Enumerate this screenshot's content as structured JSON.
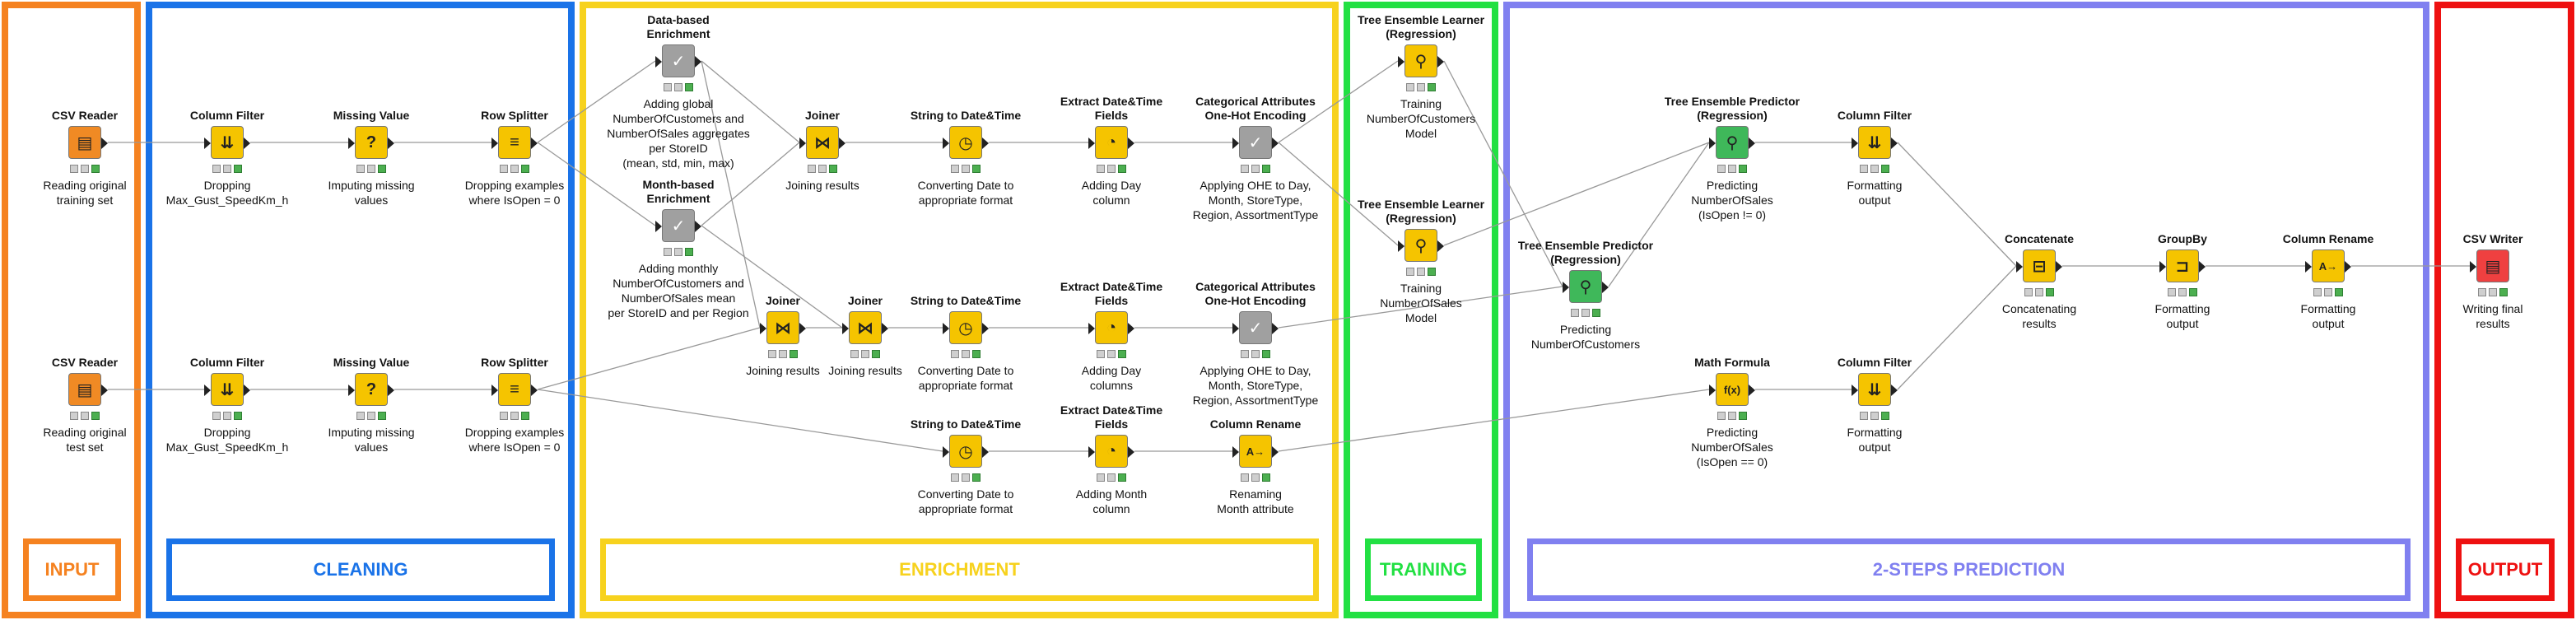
{
  "colors": {
    "input": "#f58220",
    "cleaning": "#1a73e8",
    "enrichment": "#f7d21e",
    "training": "#22e043",
    "prediction": "#8080f0",
    "output": "#ee1111",
    "node_yellow": "#f5c400",
    "node_orange": "#f08a24",
    "node_gray": "#a0a0a0",
    "node_green": "#3fb85a",
    "node_red": "#ef4040"
  },
  "sections": {
    "input": "INPUT",
    "cleaning": "CLEANING",
    "enrichment": "ENRICHMENT",
    "training": "TRAINING",
    "prediction": "2-STEPS PREDICTION",
    "output": "OUTPUT"
  },
  "nodes": [
    {
      "id": "csv_reader_train",
      "title": "CSV Reader",
      "desc": "Reading original\ntraining set",
      "icon": "file-table-icon",
      "glyph": "▤",
      "color": "orange"
    },
    {
      "id": "col_filter_1",
      "title": "Column Filter",
      "desc": "Dropping\nMax_Gust_SpeedKm_h",
      "icon": "filter-icon",
      "glyph": "⇊",
      "color": "yellow"
    },
    {
      "id": "missing_1",
      "title": "Missing Value",
      "desc": "Imputing missing\nvalues",
      "icon": "question-icon",
      "glyph": "?",
      "color": "yellow"
    },
    {
      "id": "row_split_1",
      "title": "Row Splitter",
      "desc": "Dropping examples\nwhere IsOpen = 0",
      "icon": "split-icon",
      "glyph": "≡",
      "color": "yellow"
    },
    {
      "id": "data_enrich",
      "title": "Data-based\nEnrichment",
      "desc": "Adding global\nNumberOfCustomers and\nNumberOfSales aggregates\nper StoreID\n(mean, std, min, max)",
      "icon": "metanode-icon",
      "glyph": "✓",
      "color": "gray"
    },
    {
      "id": "month_enrich",
      "title": "Month-based\nEnrichment",
      "desc": "Adding monthly\nNumberOfCustomers and\nNumberOfSales mean\nper StoreID and per Region",
      "icon": "metanode-icon",
      "glyph": "✓",
      "color": "gray"
    },
    {
      "id": "joiner_1",
      "title": "Joiner",
      "desc": "Joining results",
      "icon": "join-icon",
      "glyph": "⋈",
      "color": "yellow"
    },
    {
      "id": "str2date_1",
      "title": "String to Date&Time",
      "desc": "Converting Date to\nappropriate format",
      "icon": "clock-icon",
      "glyph": "◷",
      "color": "yellow"
    },
    {
      "id": "extract_dt_1",
      "title": "Extract Date&Time\nFields",
      "desc": "Adding Day\ncolumn",
      "icon": "clock-icon",
      "glyph": "◔",
      "color": "yellow"
    },
    {
      "id": "ohe_1",
      "title": "Categorical Attributes\nOne-Hot Encoding",
      "desc": "Applying OHE to Day,\nMonth, StoreType,\nRegion, AssortmentType",
      "icon": "metanode-icon",
      "glyph": "✓",
      "color": "gray"
    },
    {
      "id": "csv_reader_test",
      "title": "CSV Reader",
      "desc": "Reading original\ntest set",
      "icon": "file-table-icon",
      "glyph": "▤",
      "color": "orange"
    },
    {
      "id": "col_filter_2",
      "title": "Column Filter",
      "desc": "Dropping\nMax_Gust_SpeedKm_h",
      "icon": "filter-icon",
      "glyph": "⇊",
      "color": "yellow"
    },
    {
      "id": "missing_2",
      "title": "Missing Value",
      "desc": "Imputing missing\nvalues",
      "icon": "question-icon",
      "glyph": "?",
      "color": "yellow"
    },
    {
      "id": "row_split_2",
      "title": "Row Splitter",
      "desc": "Dropping examples\nwhere IsOpen = 0",
      "icon": "split-icon",
      "glyph": "≡",
      "color": "yellow"
    },
    {
      "id": "joiner_2",
      "title": "Joiner",
      "desc": "Joining results",
      "icon": "join-icon",
      "glyph": "⋈",
      "color": "yellow"
    },
    {
      "id": "joiner_3",
      "title": "Joiner",
      "desc": "Joining results",
      "icon": "join-icon",
      "glyph": "⋈",
      "color": "yellow"
    },
    {
      "id": "str2date_2",
      "title": "String to Date&Time",
      "desc": "Converting Date to\nappropriate format",
      "icon": "clock-icon",
      "glyph": "◷",
      "color": "yellow"
    },
    {
      "id": "extract_dt_2",
      "title": "Extract Date&Time\nFields",
      "desc": "Adding Day\ncolumns",
      "icon": "clock-icon",
      "glyph": "◔",
      "color": "yellow"
    },
    {
      "id": "ohe_2",
      "title": "Categorical Attributes\nOne-Hot Encoding",
      "desc": "Applying OHE to Day,\nMonth, StoreType,\nRegion, AssortmentType",
      "icon": "metanode-icon",
      "glyph": "✓",
      "color": "gray"
    },
    {
      "id": "str2date_3",
      "title": "String to Date&Time",
      "desc": "Converting Date to\nappropriate format",
      "icon": "clock-icon",
      "glyph": "◷",
      "color": "yellow"
    },
    {
      "id": "extract_dt_3",
      "title": "Extract Date&Time\nFields",
      "desc": "Adding Month\ncolumn",
      "icon": "clock-icon",
      "glyph": "◔",
      "color": "yellow"
    },
    {
      "id": "col_rename_1",
      "title": "Column Rename",
      "desc": "Renaming\nMonth attribute",
      "icon": "rename-icon",
      "glyph": "A→",
      "color": "yellow"
    },
    {
      "id": "tel_customers",
      "title": "Tree Ensemble Learner\n(Regression)",
      "desc": "Training\nNumberOfCustomers\nModel",
      "icon": "tree-learner-icon",
      "glyph": "⚲",
      "color": "yellow"
    },
    {
      "id": "tel_sales",
      "title": "Tree Ensemble Learner\n(Regression)",
      "desc": "Training\nNumberOfSales\nModel",
      "icon": "tree-learner-icon",
      "glyph": "⚲",
      "color": "yellow"
    },
    {
      "id": "tep_customers",
      "title": "Tree Ensemble Predictor\n(Regression)",
      "desc": "Predicting\nNumberOfCustomers",
      "icon": "tree-predictor-icon",
      "glyph": "⚲",
      "color": "green"
    },
    {
      "id": "tep_sales",
      "title": "Tree Ensemble Predictor\n(Regression)",
      "desc": "Predicting\nNumberOfSales\n(IsOpen != 0)",
      "icon": "tree-predictor-icon",
      "glyph": "⚲",
      "color": "green"
    },
    {
      "id": "col_filter_3",
      "title": "Column Filter",
      "desc": "Formatting\noutput",
      "icon": "filter-icon",
      "glyph": "⇊",
      "color": "yellow"
    },
    {
      "id": "math_formula",
      "title": "Math Formula",
      "desc": "Predicting\nNumberOfSales\n(IsOpen == 0)",
      "icon": "formula-icon",
      "glyph": "f(x)",
      "color": "yellow"
    },
    {
      "id": "col_filter_4",
      "title": "Column Filter",
      "desc": "Formatting\noutput",
      "icon": "filter-icon",
      "glyph": "⇊",
      "color": "yellow"
    },
    {
      "id": "concatenate",
      "title": "Concatenate",
      "desc": "Concatenating\nresults",
      "icon": "concatenate-icon",
      "glyph": "⊟",
      "color": "yellow"
    },
    {
      "id": "groupby",
      "title": "GroupBy",
      "desc": "Formatting\noutput",
      "icon": "groupby-icon",
      "glyph": "⊐",
      "color": "yellow"
    },
    {
      "id": "col_rename_2",
      "title": "Column Rename",
      "desc": "Formatting\noutput",
      "icon": "rename-icon",
      "glyph": "A→",
      "color": "yellow"
    },
    {
      "id": "csv_writer",
      "title": "CSV Writer",
      "desc": "Writing final\nresults",
      "icon": "file-write-icon",
      "glyph": "▤",
      "color": "red"
    }
  ]
}
